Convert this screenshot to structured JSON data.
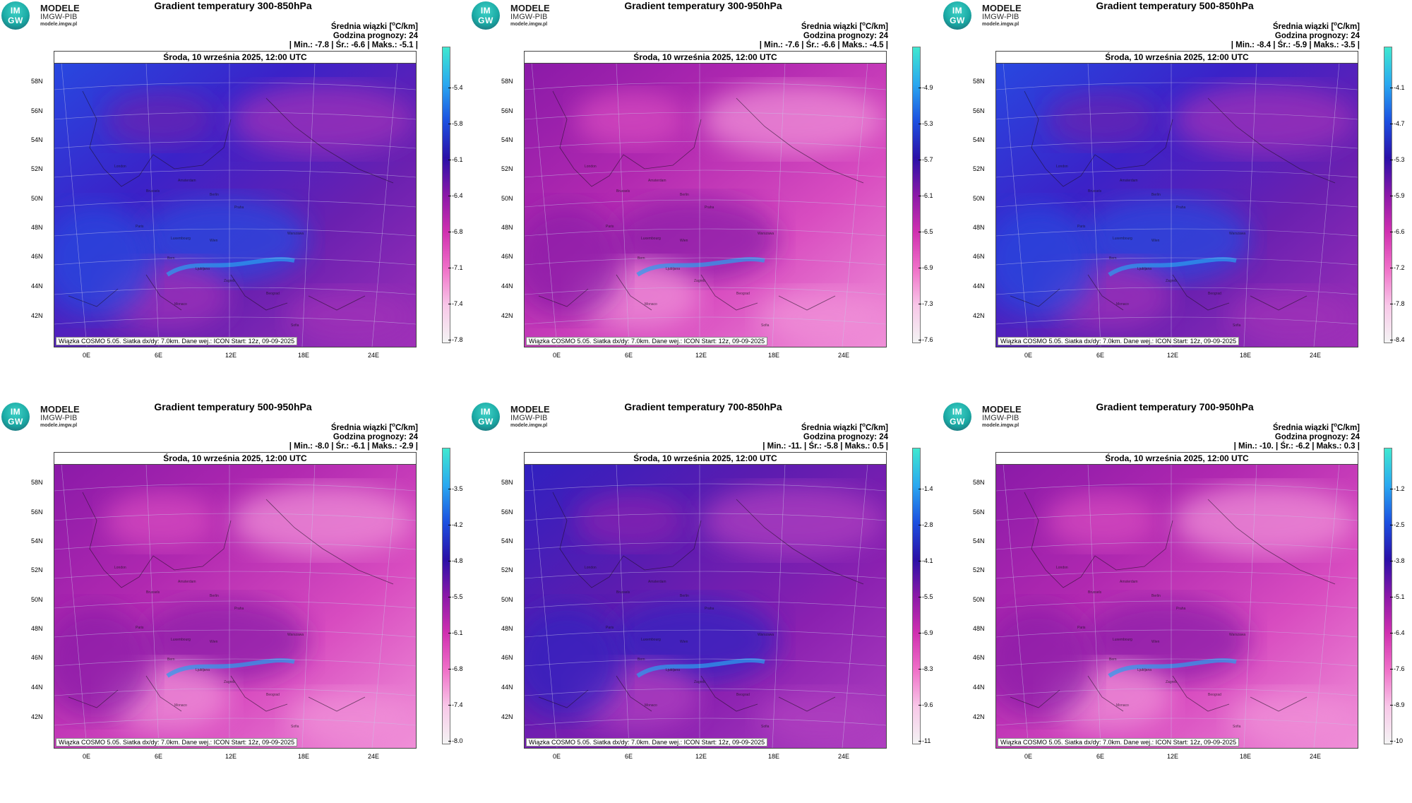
{
  "logo": {
    "badge_top": "IM",
    "badge_bottom": "GW",
    "line1": "MODELE",
    "line2": "IMGW-PIB",
    "url": "modele.imgw.pl"
  },
  "common": {
    "subtitle": "Średnia wiązki [",
    "unit_sup": "o",
    "unit_rest": "C/km]",
    "forecast": "Godzina prognozy: 24",
    "date": "Środa, 10 września 2025, 12:00 UTC",
    "footer": "Wiązka COSMO 5.05. Siatka dx/dy: 7.0km. Dane wej.: ICON Start: 12z, 09-09-2025",
    "lat_labels": [
      "58N",
      "56N",
      "54N",
      "52N",
      "50N",
      "48N",
      "46N",
      "44N",
      "42N"
    ],
    "lon_labels": [
      "0E",
      "6E",
      "12E",
      "18E",
      "24E"
    ],
    "cities": [
      "London",
      "Brussels",
      "Amsterdam",
      "Paris",
      "Luxembourg",
      "Berlin",
      "Praha",
      "Warszawa",
      "Wien",
      "Bern",
      "Ljubljana",
      "Zagreb",
      "Beograd",
      "Monaco",
      "Sofia"
    ]
  },
  "panels": [
    {
      "title": "Gradient temperatury 300-850hPa",
      "stats": "| Min.:   -7.8 | Śr.:   -6.6 | Maks.:   -5.1 |",
      "ticks": [
        "-5.4",
        "-5.8",
        "-6.1",
        "-6.4",
        "-6.8",
        "-7.1",
        "-7.4",
        "-7.8"
      ],
      "theme": "blue"
    },
    {
      "title": "Gradient temperatury 300-950hPa",
      "stats": "| Min.:   -7.6 | Śr.:   -6.6 | Maks.:   -4.5 |",
      "ticks": [
        "-4.9",
        "-5.3",
        "-5.7",
        "-6.1",
        "-6.5",
        "-6.9",
        "-7.3",
        "-7.6"
      ],
      "theme": "pink"
    },
    {
      "title": "Gradient temperatury 500-850hPa",
      "stats": "| Min.:   -8.4 | Śr.:   -5.9 | Maks.:   -3.5 |",
      "ticks": [
        "-4.1",
        "-4.7",
        "-5.3",
        "-5.9",
        "-6.6",
        "-7.2",
        "-7.8",
        "-8.4"
      ],
      "theme": "blue"
    },
    {
      "title": "Gradient temperatury 500-950hPa",
      "stats": "| Min.:   -8.0 | Śr.:   -6.1 | Maks.:   -2.9 |",
      "ticks": [
        "-3.5",
        "-4.2",
        "-4.8",
        "-5.5",
        "-6.1",
        "-6.8",
        "-7.4",
        "-8.0"
      ],
      "theme": "pink"
    },
    {
      "title": "Gradient temperatury 700-850hPa",
      "stats": "| Min.:   -11. | Śr.:   -5.8 | Maks.:   0.5 |",
      "ticks": [
        "-1.4",
        "-2.8",
        "-4.1",
        "-5.5",
        "-6.9",
        "-8.3",
        "-9.6",
        "-11"
      ],
      "theme": "purple"
    },
    {
      "title": "Gradient temperatury 700-950hPa",
      "stats": "| Min.:   -10. | Śr.:   -6.2 | Maks.:   0.3 |",
      "ticks": [
        "-1.2",
        "-2.5",
        "-3.8",
        "-5.1",
        "-6.4",
        "-7.6",
        "-8.9",
        "-10"
      ],
      "theme": "pink"
    }
  ],
  "colors": {
    "colorbar": [
      "#40e8d0",
      "#2aa8f0",
      "#1c50e0",
      "#2a10a8",
      "#8a18a8",
      "#d030b0",
      "#f070c8",
      "#f8c8e8",
      "#f4f4f4"
    ],
    "blue_field": [
      "#2848e0",
      "#3b22c8",
      "#6a20b0",
      "#a030b8"
    ],
    "pink_field": [
      "#8a1aa8",
      "#b028b0",
      "#d84cc0",
      "#f090d8"
    ],
    "purple_field": [
      "#3020c0",
      "#5a1cb0",
      "#8a20b0",
      "#b040c0"
    ]
  }
}
